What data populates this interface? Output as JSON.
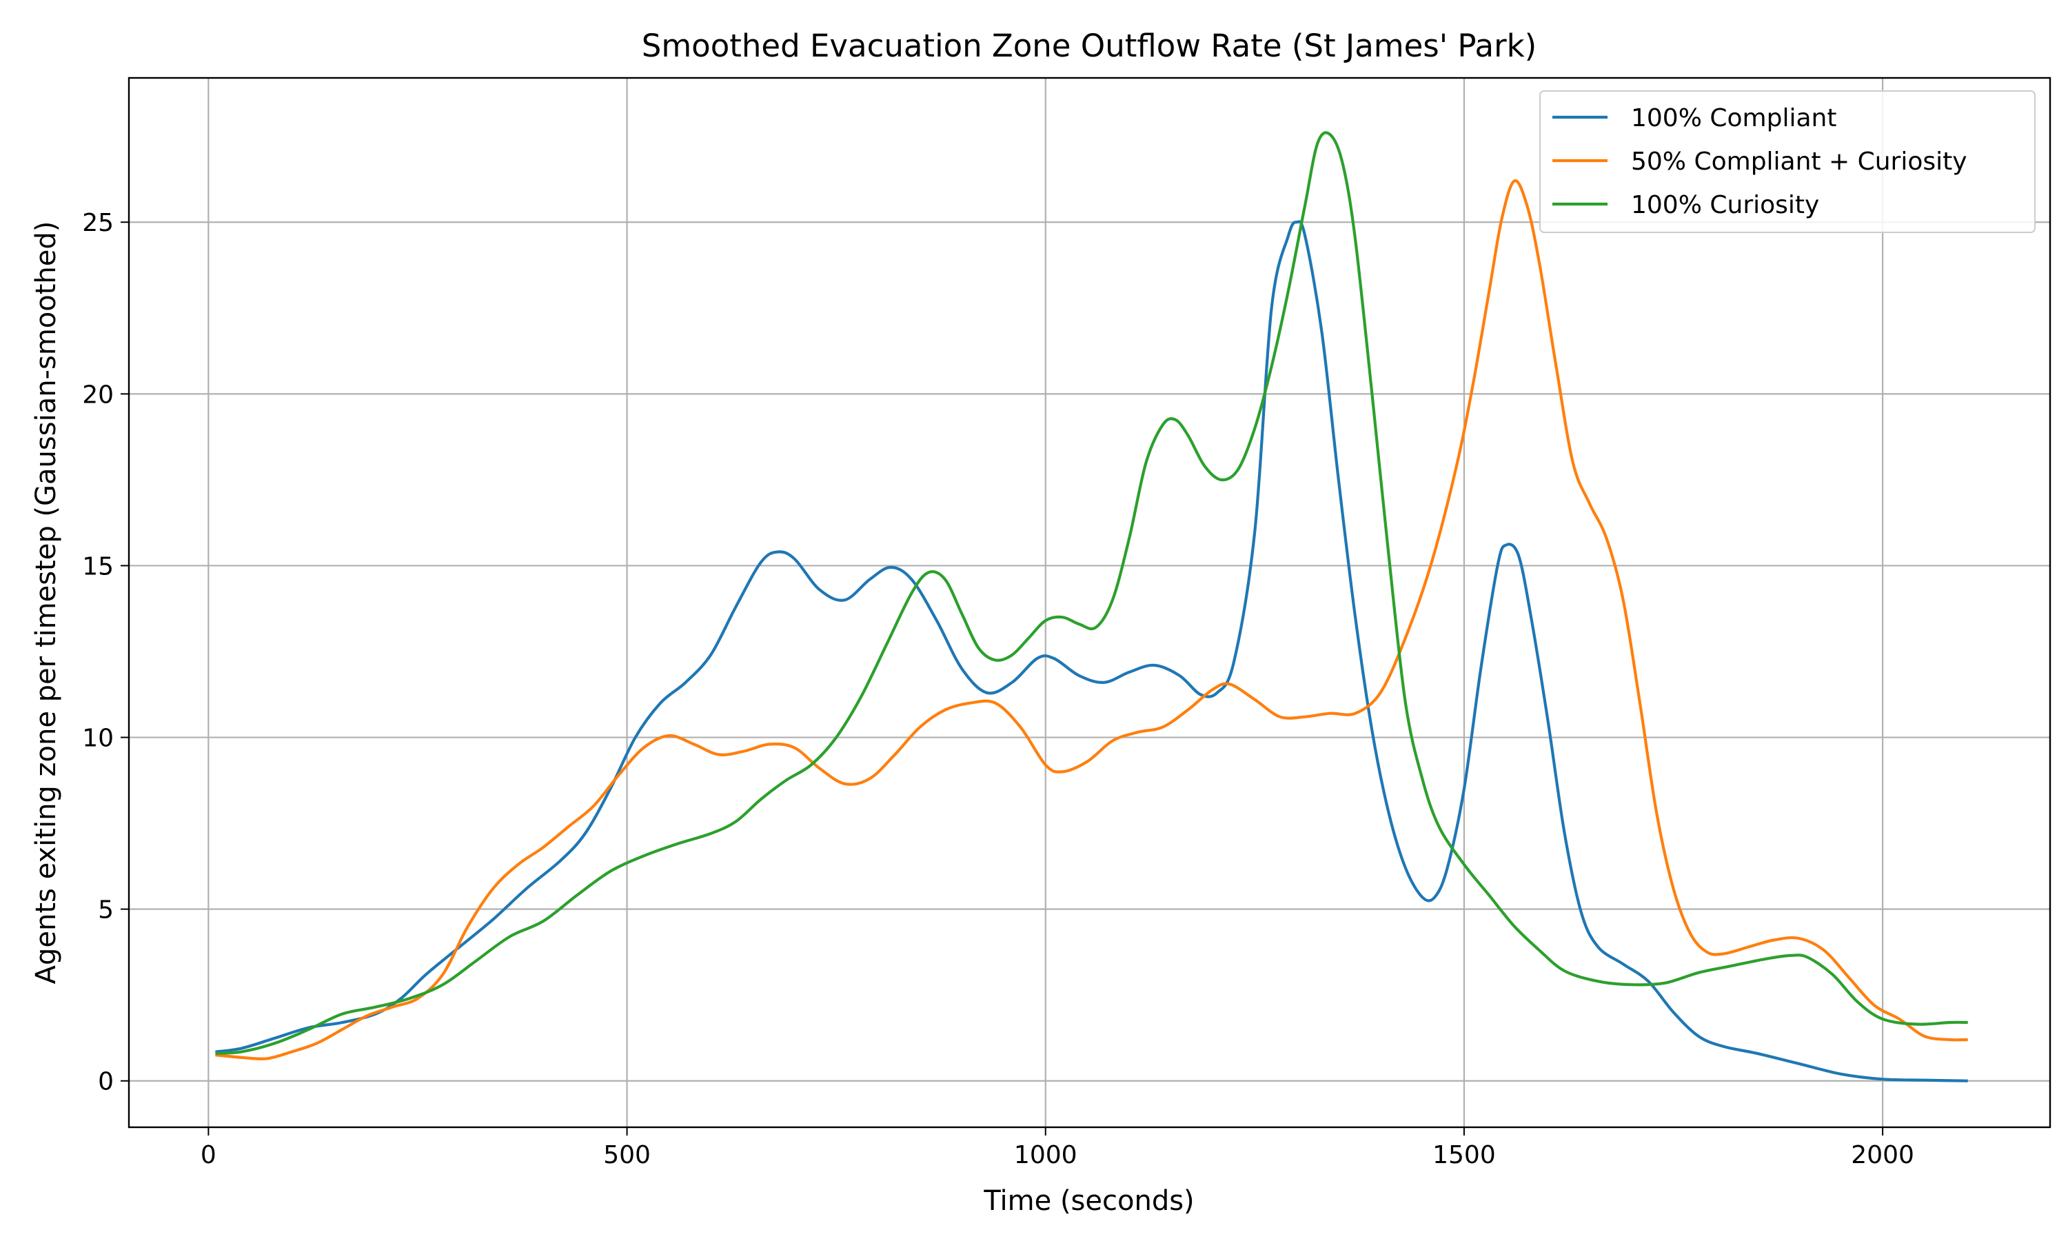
{
  "chart_data": {
    "type": "line",
    "title": "Smoothed Evacuation Zone Outflow Rate (St James' Park)",
    "xlabel": "Time (seconds)",
    "ylabel": "Agents exiting zone per timestep (Gaussian-smoothed)",
    "xlim": [
      -95,
      2200
    ],
    "ylim": [
      -1.35,
      29.2
    ],
    "xticks": [
      0,
      500,
      1000,
      1500,
      2000
    ],
    "xtick_labels": [
      "0",
      "500",
      "1000",
      "1500",
      "2000"
    ],
    "yticks": [
      0,
      5,
      10,
      15,
      20,
      25
    ],
    "ytick_labels": [
      "0",
      "5",
      "10",
      "15",
      "20",
      "25"
    ],
    "grid": true,
    "legend_position": "top-right",
    "series": [
      {
        "name": "100% Compliant",
        "color": "#1f77b4",
        "points": [
          [
            10,
            0.85
          ],
          [
            40,
            0.95
          ],
          [
            80,
            1.25
          ],
          [
            120,
            1.55
          ],
          [
            160,
            1.7
          ],
          [
            200,
            1.95
          ],
          [
            230,
            2.4
          ],
          [
            260,
            3.1
          ],
          [
            300,
            3.9
          ],
          [
            340,
            4.7
          ],
          [
            380,
            5.6
          ],
          [
            420,
            6.4
          ],
          [
            450,
            7.2
          ],
          [
            480,
            8.5
          ],
          [
            510,
            10.0
          ],
          [
            540,
            11.0
          ],
          [
            570,
            11.6
          ],
          [
            600,
            12.4
          ],
          [
            630,
            13.8
          ],
          [
            660,
            15.1
          ],
          [
            680,
            15.4
          ],
          [
            700,
            15.2
          ],
          [
            730,
            14.3
          ],
          [
            760,
            14.0
          ],
          [
            790,
            14.6
          ],
          [
            815,
            14.95
          ],
          [
            840,
            14.6
          ],
          [
            870,
            13.4
          ],
          [
            900,
            12.0
          ],
          [
            930,
            11.3
          ],
          [
            960,
            11.6
          ],
          [
            990,
            12.3
          ],
          [
            1010,
            12.3
          ],
          [
            1040,
            11.8
          ],
          [
            1070,
            11.6
          ],
          [
            1100,
            11.9
          ],
          [
            1130,
            12.1
          ],
          [
            1160,
            11.8
          ],
          [
            1185,
            11.25
          ],
          [
            1205,
            11.3
          ],
          [
            1225,
            12.2
          ],
          [
            1250,
            16.0
          ],
          [
            1270,
            22.5
          ],
          [
            1290,
            24.6
          ],
          [
            1300,
            25.0
          ],
          [
            1310,
            24.6
          ],
          [
            1330,
            21.8
          ],
          [
            1350,
            17.5
          ],
          [
            1370,
            13.5
          ],
          [
            1390,
            10.2
          ],
          [
            1410,
            7.8
          ],
          [
            1430,
            6.2
          ],
          [
            1450,
            5.35
          ],
          [
            1465,
            5.35
          ],
          [
            1480,
            6.2
          ],
          [
            1500,
            8.5
          ],
          [
            1520,
            12.0
          ],
          [
            1540,
            15.0
          ],
          [
            1550,
            15.6
          ],
          [
            1565,
            15.3
          ],
          [
            1580,
            13.5
          ],
          [
            1600,
            10.5
          ],
          [
            1620,
            7.2
          ],
          [
            1640,
            4.9
          ],
          [
            1660,
            3.9
          ],
          [
            1690,
            3.4
          ],
          [
            1720,
            2.9
          ],
          [
            1750,
            2.0
          ],
          [
            1780,
            1.3
          ],
          [
            1810,
            1.0
          ],
          [
            1850,
            0.8
          ],
          [
            1900,
            0.5
          ],
          [
            1950,
            0.2
          ],
          [
            2000,
            0.05
          ],
          [
            2050,
            0.02
          ],
          [
            2100,
            0.0
          ]
        ]
      },
      {
        "name": "50% Compliant + Curiosity",
        "color": "#ff7f0e",
        "points": [
          [
            10,
            0.75
          ],
          [
            40,
            0.68
          ],
          [
            70,
            0.65
          ],
          [
            100,
            0.85
          ],
          [
            130,
            1.1
          ],
          [
            160,
            1.5
          ],
          [
            190,
            1.9
          ],
          [
            220,
            2.15
          ],
          [
            250,
            2.4
          ],
          [
            280,
            3.1
          ],
          [
            310,
            4.5
          ],
          [
            340,
            5.6
          ],
          [
            370,
            6.3
          ],
          [
            400,
            6.8
          ],
          [
            430,
            7.4
          ],
          [
            460,
            8.0
          ],
          [
            490,
            8.9
          ],
          [
            520,
            9.7
          ],
          [
            550,
            10.05
          ],
          [
            580,
            9.8
          ],
          [
            610,
            9.5
          ],
          [
            640,
            9.6
          ],
          [
            670,
            9.8
          ],
          [
            700,
            9.7
          ],
          [
            730,
            9.1
          ],
          [
            760,
            8.65
          ],
          [
            790,
            8.8
          ],
          [
            820,
            9.5
          ],
          [
            850,
            10.3
          ],
          [
            880,
            10.8
          ],
          [
            910,
            11.0
          ],
          [
            940,
            11.0
          ],
          [
            970,
            10.3
          ],
          [
            1000,
            9.2
          ],
          [
            1020,
            9.0
          ],
          [
            1050,
            9.3
          ],
          [
            1080,
            9.9
          ],
          [
            1110,
            10.15
          ],
          [
            1140,
            10.3
          ],
          [
            1170,
            10.8
          ],
          [
            1200,
            11.4
          ],
          [
            1220,
            11.55
          ],
          [
            1250,
            11.1
          ],
          [
            1280,
            10.6
          ],
          [
            1310,
            10.6
          ],
          [
            1340,
            10.7
          ],
          [
            1370,
            10.7
          ],
          [
            1400,
            11.3
          ],
          [
            1430,
            12.9
          ],
          [
            1460,
            15.0
          ],
          [
            1490,
            17.8
          ],
          [
            1510,
            20.2
          ],
          [
            1530,
            23.0
          ],
          [
            1545,
            25.1
          ],
          [
            1560,
            26.2
          ],
          [
            1575,
            25.5
          ],
          [
            1590,
            23.8
          ],
          [
            1610,
            20.8
          ],
          [
            1630,
            18.0
          ],
          [
            1650,
            16.8
          ],
          [
            1670,
            15.8
          ],
          [
            1690,
            14.0
          ],
          [
            1710,
            11.0
          ],
          [
            1730,
            7.8
          ],
          [
            1750,
            5.6
          ],
          [
            1770,
            4.3
          ],
          [
            1790,
            3.75
          ],
          [
            1810,
            3.7
          ],
          [
            1840,
            3.9
          ],
          [
            1870,
            4.1
          ],
          [
            1900,
            4.15
          ],
          [
            1930,
            3.8
          ],
          [
            1960,
            3.0
          ],
          [
            1990,
            2.2
          ],
          [
            2020,
            1.8
          ],
          [
            2050,
            1.3
          ],
          [
            2080,
            1.2
          ],
          [
            2100,
            1.2
          ]
        ]
      },
      {
        "name": "100% Curiosity",
        "color": "#2ca02c",
        "points": [
          [
            10,
            0.8
          ],
          [
            40,
            0.85
          ],
          [
            80,
            1.1
          ],
          [
            120,
            1.5
          ],
          [
            160,
            1.95
          ],
          [
            200,
            2.15
          ],
          [
            240,
            2.4
          ],
          [
            280,
            2.8
          ],
          [
            320,
            3.5
          ],
          [
            360,
            4.2
          ],
          [
            400,
            4.65
          ],
          [
            440,
            5.4
          ],
          [
            480,
            6.1
          ],
          [
            520,
            6.55
          ],
          [
            560,
            6.9
          ],
          [
            600,
            7.2
          ],
          [
            630,
            7.55
          ],
          [
            660,
            8.2
          ],
          [
            690,
            8.75
          ],
          [
            720,
            9.2
          ],
          [
            750,
            10.0
          ],
          [
            780,
            11.2
          ],
          [
            810,
            12.7
          ],
          [
            840,
            14.2
          ],
          [
            860,
            14.8
          ],
          [
            880,
            14.6
          ],
          [
            900,
            13.6
          ],
          [
            920,
            12.6
          ],
          [
            940,
            12.25
          ],
          [
            960,
            12.4
          ],
          [
            980,
            12.9
          ],
          [
            1000,
            13.4
          ],
          [
            1020,
            13.5
          ],
          [
            1040,
            13.3
          ],
          [
            1060,
            13.2
          ],
          [
            1080,
            14.0
          ],
          [
            1100,
            15.8
          ],
          [
            1120,
            18.0
          ],
          [
            1140,
            19.1
          ],
          [
            1155,
            19.25
          ],
          [
            1170,
            18.8
          ],
          [
            1190,
            17.9
          ],
          [
            1210,
            17.5
          ],
          [
            1230,
            17.8
          ],
          [
            1250,
            19.0
          ],
          [
            1270,
            20.8
          ],
          [
            1290,
            23.0
          ],
          [
            1310,
            25.5
          ],
          [
            1325,
            27.3
          ],
          [
            1340,
            27.55
          ],
          [
            1355,
            26.7
          ],
          [
            1370,
            24.5
          ],
          [
            1390,
            20.0
          ],
          [
            1410,
            15.3
          ],
          [
            1430,
            11.0
          ],
          [
            1450,
            8.8
          ],
          [
            1470,
            7.4
          ],
          [
            1500,
            6.3
          ],
          [
            1530,
            5.4
          ],
          [
            1560,
            4.5
          ],
          [
            1590,
            3.8
          ],
          [
            1620,
            3.2
          ],
          [
            1660,
            2.9
          ],
          [
            1700,
            2.8
          ],
          [
            1740,
            2.85
          ],
          [
            1780,
            3.15
          ],
          [
            1820,
            3.35
          ],
          [
            1860,
            3.55
          ],
          [
            1890,
            3.65
          ],
          [
            1910,
            3.6
          ],
          [
            1940,
            3.1
          ],
          [
            1970,
            2.3
          ],
          [
            2000,
            1.8
          ],
          [
            2040,
            1.65
          ],
          [
            2080,
            1.7
          ],
          [
            2100,
            1.7
          ]
        ]
      }
    ]
  }
}
